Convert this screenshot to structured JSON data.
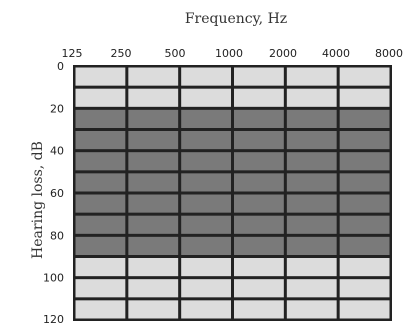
{
  "chart_data": {
    "type": "heatmap",
    "title": "Frequency,  Hz",
    "ylabel": "Hearing loss, dB",
    "x_ticks": [
      "125",
      "250",
      "500",
      "1000",
      "2000",
      "4000",
      "8000"
    ],
    "y_ticks": [
      "0",
      "20",
      "40",
      "60",
      "80",
      "100",
      "120"
    ],
    "ylim": [
      0,
      120
    ],
    "rows": 12,
    "cols": 6,
    "shaded_band_db": [
      20,
      90
    ],
    "colors": {
      "light_cell": "#dcdcdc",
      "dark_cell": "#7a7a7a",
      "border": "#222222"
    }
  }
}
